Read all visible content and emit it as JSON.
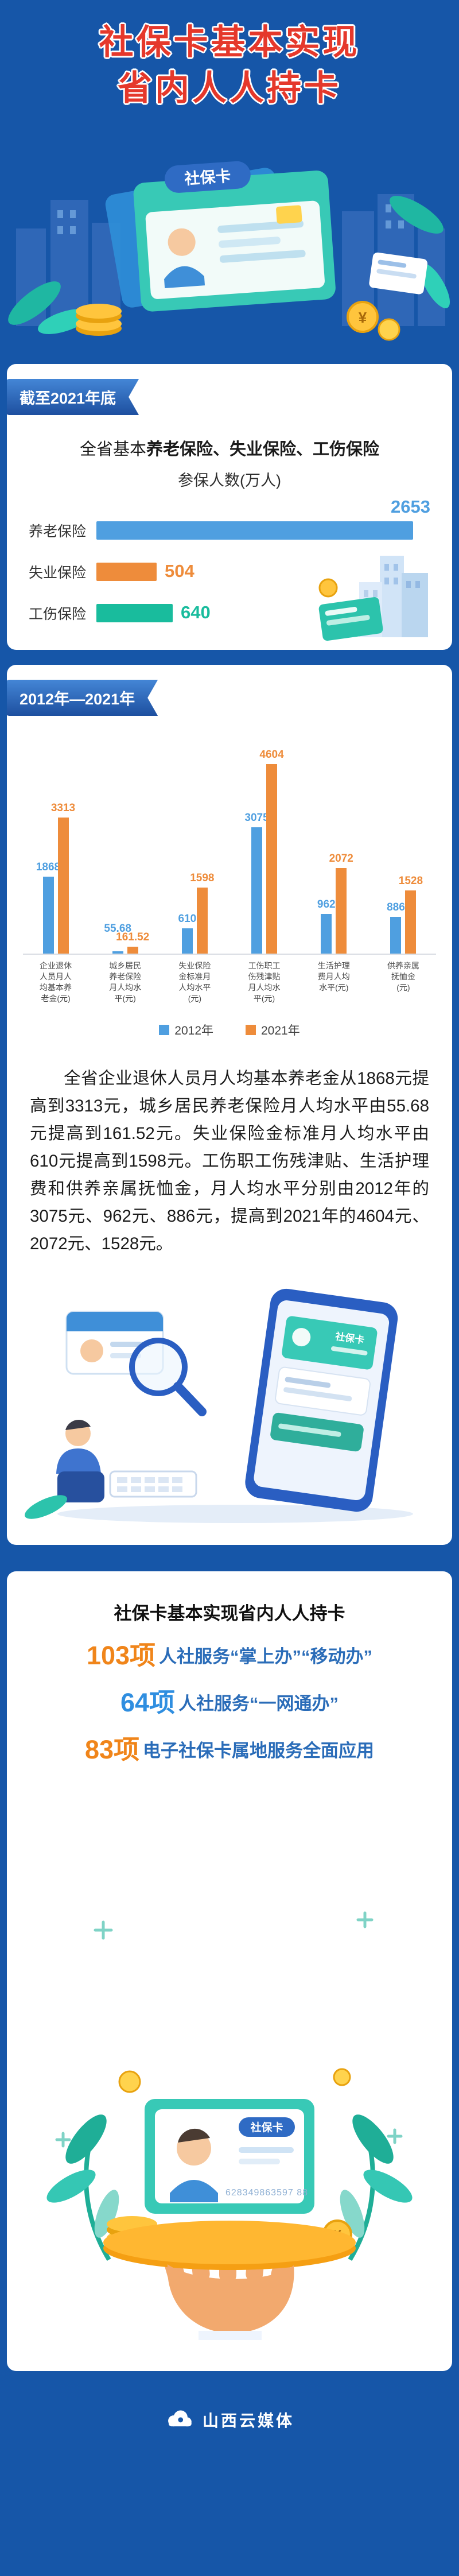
{
  "page": {
    "bg": "#1656a8",
    "title": {
      "line1": "社保卡基本实现",
      "line2": "省内人人持卡"
    }
  },
  "shared": {
    "card_label": "社保卡",
    "card_number": "628349863597 88",
    "yen": "¥"
  },
  "section_insured": {
    "badge": "截至2021年底",
    "heading_prefix": "全省基本",
    "heading_bold": "养老保险、失业保险、工伤保险",
    "heading_line2": "参保人数(万人)"
  },
  "section_decade": {
    "badge": "2012年—2021年",
    "paragraph": "全省企业退休人员月人均基本养老金从1868元提高到3313元，城乡居民养老保险月人均水平由55.68元提高到161.52元。失业保险金标准月人均水平由610元提高到1598元。工伤职工伤残津贴、生活护理费和供养亲属抚恤金，月人均水平分别由2012年的3075元、962元、886元，提高到2021年的4604元、2072元、1528元。"
  },
  "section_services": {
    "heading": "社保卡基本实现省内人人持卡",
    "items": [
      {
        "count": "103项",
        "text": "人社服务“掌上办”“移动办”",
        "count_color": "#f0851a"
      },
      {
        "count": "64项",
        "text": "人社服务“一网通办”",
        "count_color": "#2f8ee0"
      },
      {
        "count": "83项",
        "text": "电子社保卡属地服务全面应用",
        "count_color": "#f0851a"
      }
    ]
  },
  "footer": {
    "brand": "山西云媒体"
  },
  "chart_data": [
    {
      "type": "bar",
      "orientation": "horizontal",
      "title": "全省基本养老保险、失业保险、工伤保险参保人数(万人)",
      "subtitle": "截至2021年底",
      "categories": [
        "养老保险",
        "失业保险",
        "工伤保险"
      ],
      "values": [
        2653,
        504,
        640
      ],
      "colors": [
        "#4f9fe0",
        "#ee8c3b",
        "#19bc9d"
      ],
      "xlim": [
        0,
        2800
      ],
      "grid": false,
      "value_labels": true
    },
    {
      "type": "bar",
      "orientation": "vertical",
      "title": "2012年—2021年",
      "categories": [
        "企业退休人员月人均基本养老金(元)",
        "城乡居民养老保险月人均水平(元)",
        "失业保险金标准月人均水平(元)",
        "工伤职工伤残津贴月人均水平(元)",
        "生活护理费月人均水平(元)",
        "供养亲属抚恤金(元)"
      ],
      "series": [
        {
          "name": "2012年",
          "color": "#4f9fe0",
          "values": [
            1868,
            55.68,
            610,
            3075,
            962,
            886
          ]
        },
        {
          "name": "2021年",
          "color": "#ee8c3b",
          "values": [
            3313,
            161.52,
            1598,
            4604,
            2072,
            1528
          ]
        }
      ],
      "ylim": [
        0,
        5000
      ],
      "grid": false,
      "legend_position": "bottom",
      "value_labels": true
    }
  ]
}
